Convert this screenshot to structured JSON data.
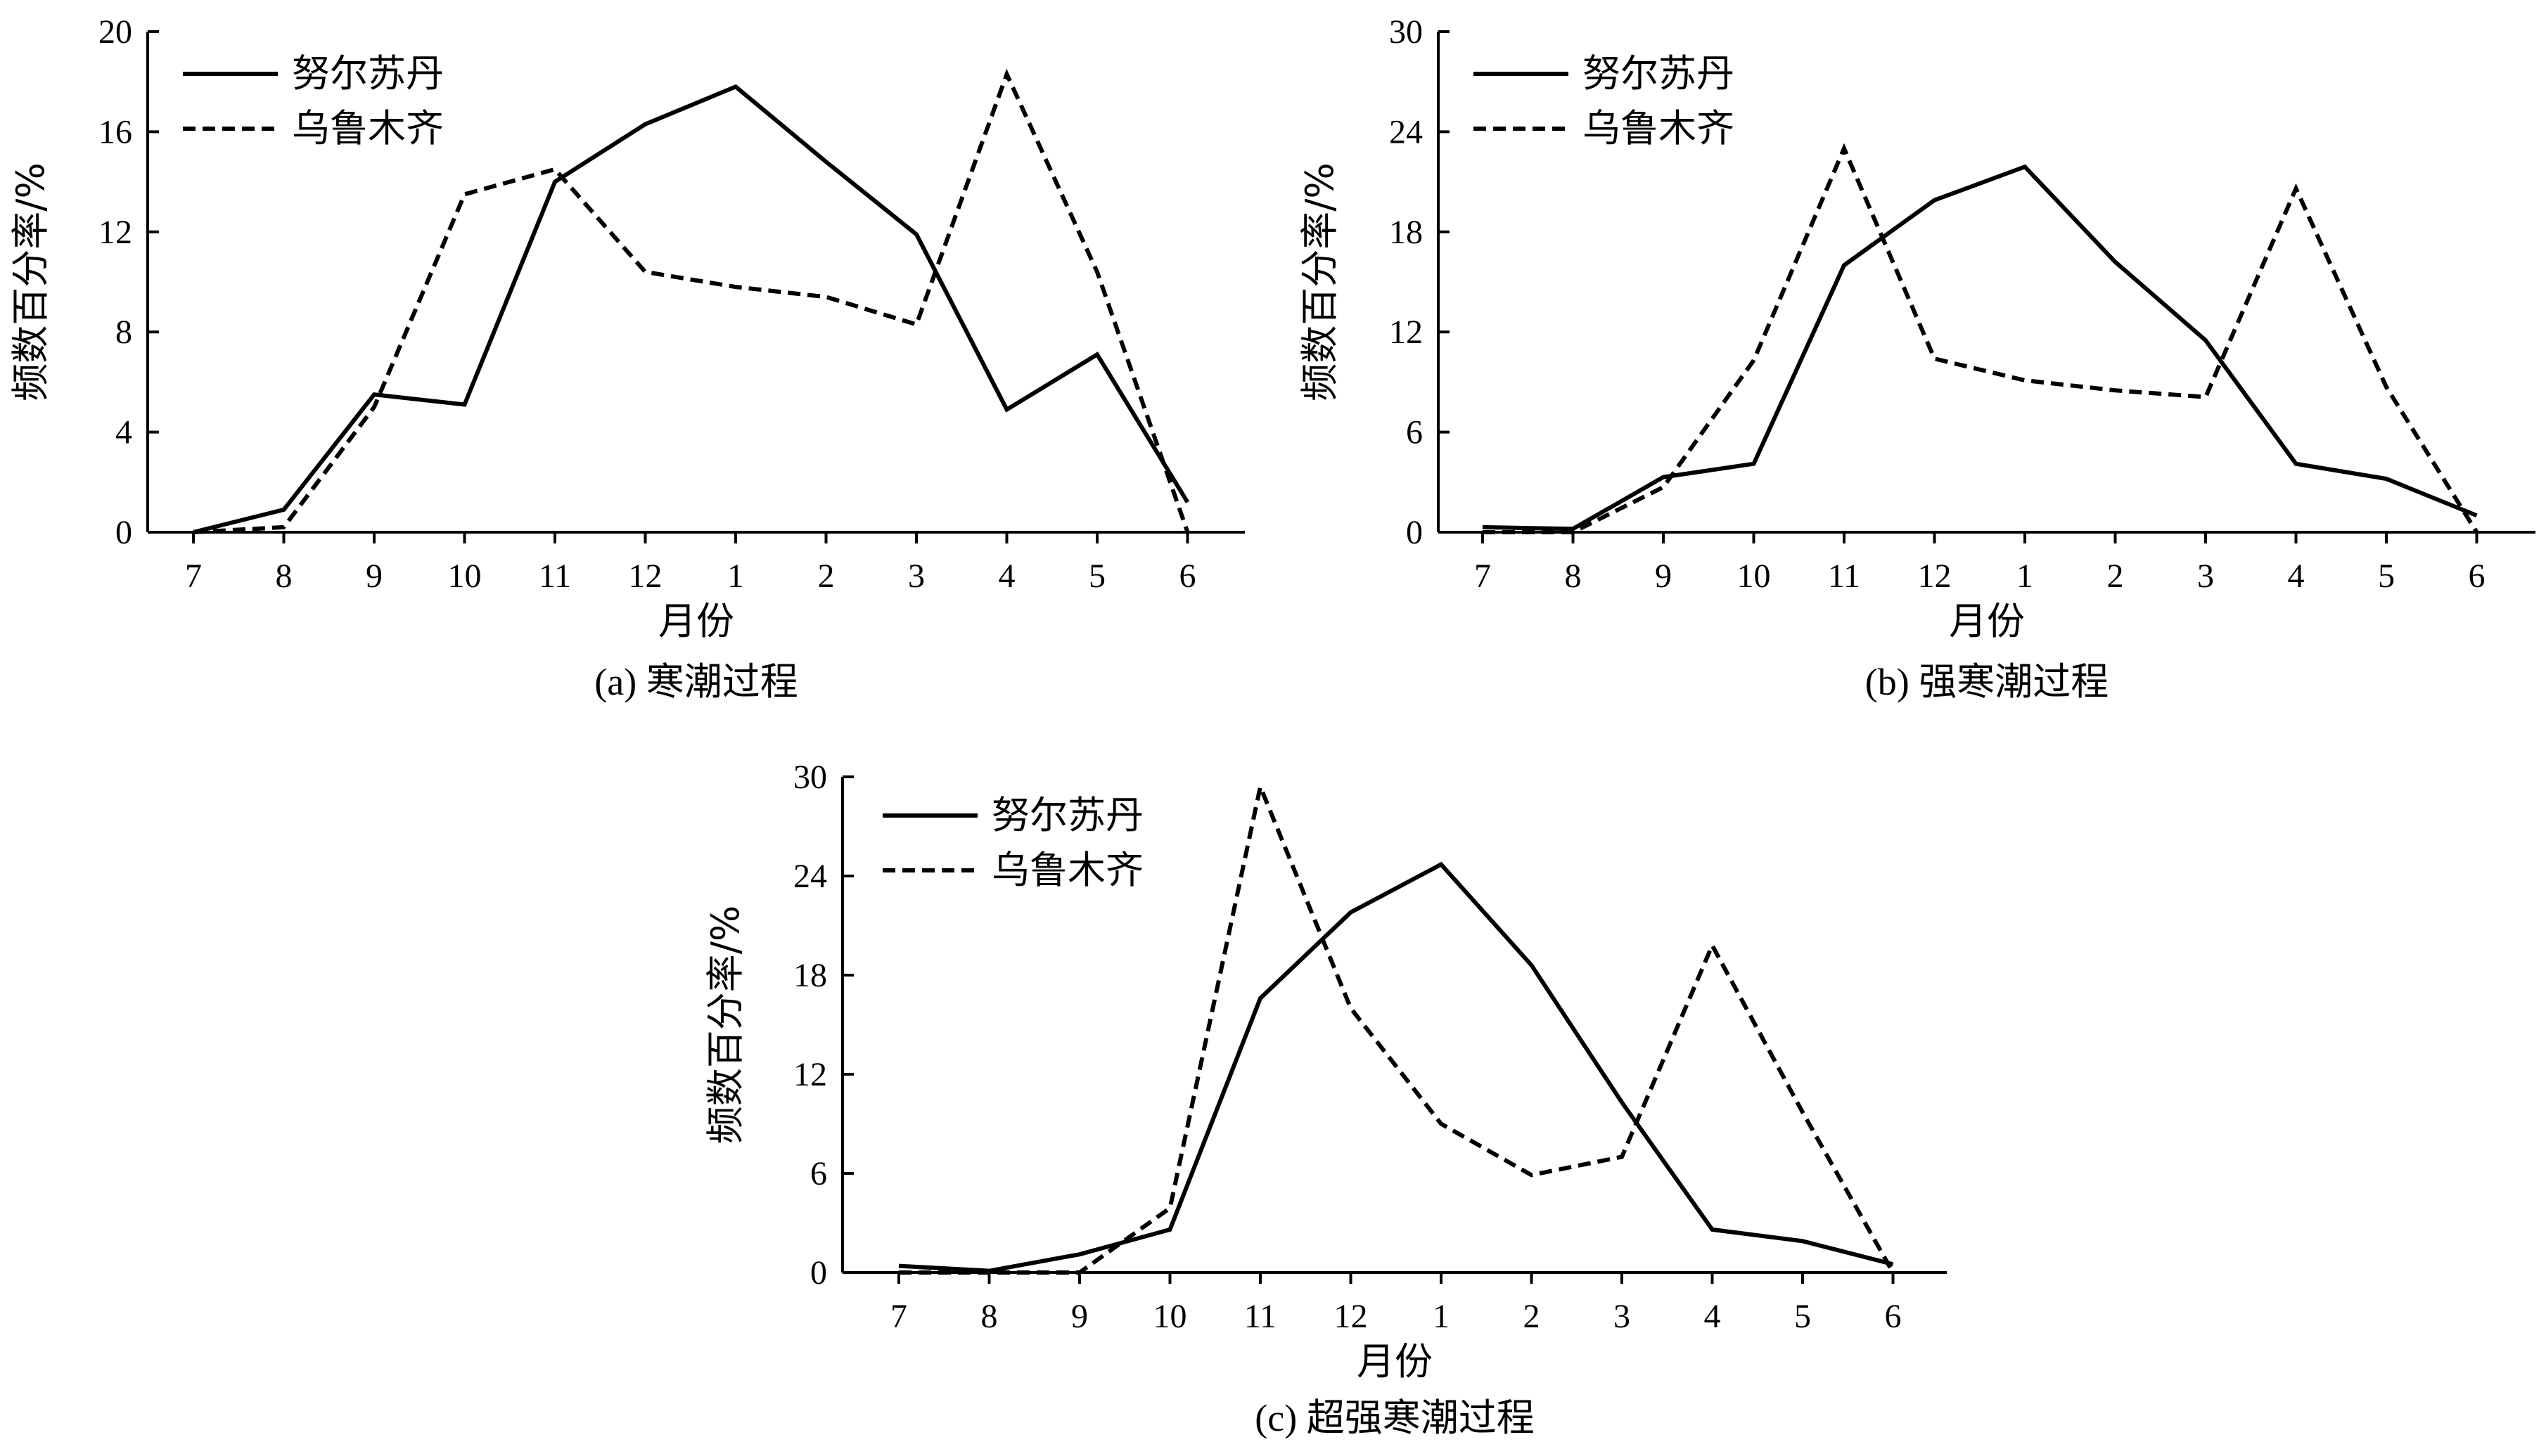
{
  "chart_data": [
    {
      "type": "line",
      "caption": "(a) 寒潮过程",
      "xlabel": "月份",
      "ylabel": "频数百分率/%",
      "categories": [
        "7",
        "8",
        "9",
        "10",
        "11",
        "12",
        "1",
        "2",
        "3",
        "4",
        "5",
        "6"
      ],
      "ylim": [
        0,
        20
      ],
      "yticks": [
        0,
        4,
        8,
        12,
        16,
        20
      ],
      "legend": "top-left",
      "series": [
        {
          "name": "努尔苏丹",
          "style": "solid",
          "values": [
            0.0,
            0.9,
            5.5,
            5.1,
            14.0,
            16.3,
            17.8,
            14.8,
            11.9,
            4.9,
            7.1,
            1.2
          ]
        },
        {
          "name": "乌鲁木齐",
          "style": "dashed",
          "values": [
            0.0,
            0.2,
            5.0,
            13.5,
            14.5,
            10.4,
            9.8,
            9.4,
            8.3,
            18.3,
            10.4,
            0.0
          ]
        }
      ]
    },
    {
      "type": "line",
      "caption": "(b) 强寒潮过程",
      "xlabel": "月份",
      "ylabel": "频数百分率/%",
      "categories": [
        "7",
        "8",
        "9",
        "10",
        "11",
        "12",
        "1",
        "2",
        "3",
        "4",
        "5",
        "6"
      ],
      "ylim": [
        0,
        30
      ],
      "yticks": [
        0,
        6,
        12,
        18,
        24,
        30
      ],
      "legend": "top-left",
      "series": [
        {
          "name": "努尔苏丹",
          "style": "solid",
          "values": [
            0.3,
            0.2,
            3.3,
            4.1,
            16.0,
            19.9,
            21.9,
            16.2,
            11.5,
            4.1,
            3.2,
            1.0
          ]
        },
        {
          "name": "乌鲁木齐",
          "style": "dashed",
          "values": [
            0.0,
            0.0,
            2.7,
            10.3,
            23.0,
            10.4,
            9.1,
            8.5,
            8.1,
            20.6,
            8.7,
            0.0
          ]
        }
      ]
    },
    {
      "type": "line",
      "caption": "(c) 超强寒潮过程",
      "xlabel": "月份",
      "ylabel": "频数百分率/%",
      "categories": [
        "7",
        "8",
        "9",
        "10",
        "11",
        "12",
        "1",
        "2",
        "3",
        "4",
        "5",
        "6"
      ],
      "ylim": [
        0,
        30
      ],
      "yticks": [
        0,
        6,
        12,
        18,
        24,
        30
      ],
      "legend": "top-left",
      "series": [
        {
          "name": "努尔苏丹",
          "style": "solid",
          "values": [
            0.4,
            0.1,
            1.1,
            2.6,
            16.6,
            21.8,
            24.7,
            18.6,
            10.3,
            2.6,
            1.9,
            0.5
          ]
        },
        {
          "name": "乌鲁木齐",
          "style": "dashed",
          "values": [
            0.0,
            0.0,
            0.0,
            3.9,
            29.4,
            16.0,
            9.0,
            5.9,
            7.0,
            19.8,
            9.7,
            0.0
          ]
        }
      ]
    }
  ]
}
